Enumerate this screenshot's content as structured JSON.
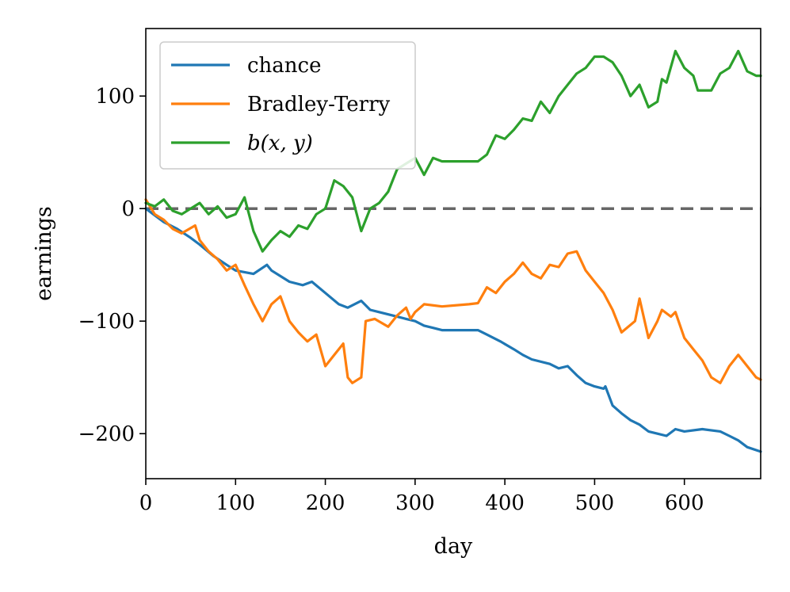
{
  "chart_data": {
    "type": "line",
    "title": "",
    "xlabel": "day",
    "ylabel": "earnings",
    "xlim": [
      0,
      685
    ],
    "ylim": [
      -240,
      160
    ],
    "xticks": [
      0,
      100,
      200,
      300,
      400,
      500,
      600
    ],
    "yticks": [
      100,
      0,
      -100,
      -200
    ],
    "ytick_labels": [
      "100",
      "0",
      "−100",
      "−200"
    ],
    "grid": false,
    "legend_position": "top-left",
    "reference_line": {
      "y": 0,
      "style": "dashed",
      "color": "#666666"
    },
    "series": [
      {
        "name": "chance",
        "color": "#1f77b4",
        "points": [
          [
            0,
            0
          ],
          [
            10,
            -6
          ],
          [
            20,
            -12
          ],
          [
            35,
            -18
          ],
          [
            50,
            -26
          ],
          [
            60,
            -32
          ],
          [
            75,
            -42
          ],
          [
            90,
            -50
          ],
          [
            100,
            -55
          ],
          [
            120,
            -58
          ],
          [
            135,
            -50
          ],
          [
            140,
            -55
          ],
          [
            150,
            -60
          ],
          [
            160,
            -65
          ],
          [
            175,
            -68
          ],
          [
            185,
            -65
          ],
          [
            200,
            -75
          ],
          [
            215,
            -85
          ],
          [
            225,
            -88
          ],
          [
            240,
            -82
          ],
          [
            250,
            -90
          ],
          [
            260,
            -92
          ],
          [
            275,
            -95
          ],
          [
            290,
            -98
          ],
          [
            300,
            -100
          ],
          [
            310,
            -104
          ],
          [
            320,
            -106
          ],
          [
            330,
            -108
          ],
          [
            350,
            -108
          ],
          [
            370,
            -108
          ],
          [
            380,
            -112
          ],
          [
            395,
            -118
          ],
          [
            410,
            -125
          ],
          [
            420,
            -130
          ],
          [
            430,
            -134
          ],
          [
            450,
            -138
          ],
          [
            460,
            -142
          ],
          [
            470,
            -140
          ],
          [
            480,
            -148
          ],
          [
            490,
            -155
          ],
          [
            500,
            -158
          ],
          [
            510,
            -160
          ],
          [
            512,
            -158
          ],
          [
            520,
            -175
          ],
          [
            530,
            -182
          ],
          [
            540,
            -188
          ],
          [
            550,
            -192
          ],
          [
            560,
            -198
          ],
          [
            570,
            -200
          ],
          [
            580,
            -202
          ],
          [
            590,
            -196
          ],
          [
            600,
            -198
          ],
          [
            620,
            -196
          ],
          [
            640,
            -198
          ],
          [
            650,
            -202
          ],
          [
            660,
            -206
          ],
          [
            670,
            -212
          ],
          [
            685,
            -216
          ]
        ]
      },
      {
        "name": "Bradley-Terry",
        "color": "#ff7f0e",
        "points": [
          [
            0,
            8
          ],
          [
            10,
            -5
          ],
          [
            20,
            -10
          ],
          [
            30,
            -18
          ],
          [
            40,
            -22
          ],
          [
            55,
            -15
          ],
          [
            60,
            -28
          ],
          [
            70,
            -38
          ],
          [
            80,
            -45
          ],
          [
            90,
            -55
          ],
          [
            100,
            -50
          ],
          [
            110,
            -68
          ],
          [
            120,
            -85
          ],
          [
            130,
            -100
          ],
          [
            140,
            -85
          ],
          [
            150,
            -78
          ],
          [
            160,
            -100
          ],
          [
            170,
            -110
          ],
          [
            180,
            -118
          ],
          [
            190,
            -112
          ],
          [
            200,
            -140
          ],
          [
            210,
            -130
          ],
          [
            220,
            -120
          ],
          [
            225,
            -150
          ],
          [
            230,
            -155
          ],
          [
            240,
            -150
          ],
          [
            245,
            -100
          ],
          [
            255,
            -98
          ],
          [
            270,
            -105
          ],
          [
            280,
            -95
          ],
          [
            290,
            -88
          ],
          [
            295,
            -98
          ],
          [
            300,
            -92
          ],
          [
            310,
            -85
          ],
          [
            330,
            -87
          ],
          [
            360,
            -85
          ],
          [
            370,
            -84
          ],
          [
            380,
            -70
          ],
          [
            390,
            -75
          ],
          [
            400,
            -65
          ],
          [
            410,
            -58
          ],
          [
            420,
            -48
          ],
          [
            430,
            -58
          ],
          [
            440,
            -62
          ],
          [
            450,
            -50
          ],
          [
            460,
            -52
          ],
          [
            470,
            -40
          ],
          [
            480,
            -38
          ],
          [
            490,
            -55
          ],
          [
            500,
            -65
          ],
          [
            510,
            -75
          ],
          [
            520,
            -90
          ],
          [
            530,
            -110
          ],
          [
            545,
            -100
          ],
          [
            550,
            -80
          ],
          [
            560,
            -115
          ],
          [
            570,
            -100
          ],
          [
            575,
            -90
          ],
          [
            585,
            -96
          ],
          [
            590,
            -92
          ],
          [
            600,
            -115
          ],
          [
            610,
            -125
          ],
          [
            620,
            -135
          ],
          [
            630,
            -150
          ],
          [
            640,
            -155
          ],
          [
            650,
            -140
          ],
          [
            660,
            -130
          ],
          [
            670,
            -140
          ],
          [
            680,
            -150
          ],
          [
            685,
            -152
          ]
        ]
      },
      {
        "name": "b(x, y)",
        "color": "#2ca02c",
        "points": [
          [
            0,
            5
          ],
          [
            10,
            2
          ],
          [
            20,
            8
          ],
          [
            30,
            -2
          ],
          [
            40,
            -5
          ],
          [
            50,
            0
          ],
          [
            60,
            5
          ],
          [
            70,
            -5
          ],
          [
            80,
            2
          ],
          [
            90,
            -8
          ],
          [
            100,
            -5
          ],
          [
            110,
            10
          ],
          [
            120,
            -20
          ],
          [
            130,
            -38
          ],
          [
            140,
            -28
          ],
          [
            150,
            -20
          ],
          [
            160,
            -25
          ],
          [
            170,
            -15
          ],
          [
            180,
            -18
          ],
          [
            190,
            -5
          ],
          [
            200,
            0
          ],
          [
            210,
            25
          ],
          [
            220,
            20
          ],
          [
            230,
            10
          ],
          [
            240,
            -20
          ],
          [
            250,
            0
          ],
          [
            260,
            5
          ],
          [
            270,
            15
          ],
          [
            280,
            35
          ],
          [
            290,
            40
          ],
          [
            300,
            45
          ],
          [
            310,
            30
          ],
          [
            320,
            45
          ],
          [
            330,
            42
          ],
          [
            350,
            42
          ],
          [
            370,
            42
          ],
          [
            380,
            48
          ],
          [
            390,
            65
          ],
          [
            400,
            62
          ],
          [
            410,
            70
          ],
          [
            420,
            80
          ],
          [
            430,
            78
          ],
          [
            440,
            95
          ],
          [
            450,
            85
          ],
          [
            460,
            100
          ],
          [
            470,
            110
          ],
          [
            480,
            120
          ],
          [
            490,
            125
          ],
          [
            500,
            135
          ],
          [
            510,
            135
          ],
          [
            520,
            130
          ],
          [
            530,
            118
          ],
          [
            540,
            100
          ],
          [
            550,
            110
          ],
          [
            560,
            90
          ],
          [
            570,
            95
          ],
          [
            575,
            115
          ],
          [
            580,
            112
          ],
          [
            590,
            140
          ],
          [
            600,
            125
          ],
          [
            610,
            118
          ],
          [
            615,
            105
          ],
          [
            630,
            105
          ],
          [
            640,
            120
          ],
          [
            650,
            125
          ],
          [
            660,
            140
          ],
          [
            670,
            122
          ],
          [
            680,
            118
          ],
          [
            685,
            118
          ]
        ]
      }
    ]
  }
}
